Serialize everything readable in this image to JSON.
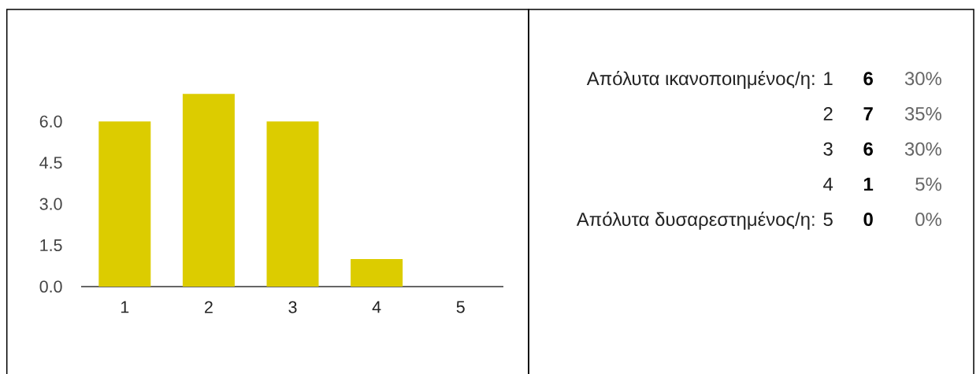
{
  "chart_data": [
    {
      "type": "bar",
      "categories": [
        "1",
        "2",
        "3",
        "4",
        "5"
      ],
      "values": [
        6,
        7,
        6,
        1,
        0
      ],
      "color": "#dccc00",
      "ylim": [
        0,
        7
      ],
      "yticks": [
        {
          "value": 0,
          "label": "0.0"
        },
        {
          "value": 1.5,
          "label": "1.5"
        },
        {
          "value": 3,
          "label": "3.0"
        },
        {
          "value": 4.5,
          "label": "4.5"
        },
        {
          "value": 6,
          "label": "6.0"
        }
      ]
    },
    {
      "type": "other",
      "categories": [
        "Απόλυτα ικανοποιημένος/η: 1",
        "2",
        "3",
        "4",
        "Απόλυτα δυσαρεστημένος/η: 5"
      ],
      "values": [
        6,
        7,
        6,
        1,
        0
      ],
      "data_labels": true,
      "annotations": [
        "30%",
        "35%",
        "30%",
        "5%",
        "0%"
      ]
    }
  ]
}
